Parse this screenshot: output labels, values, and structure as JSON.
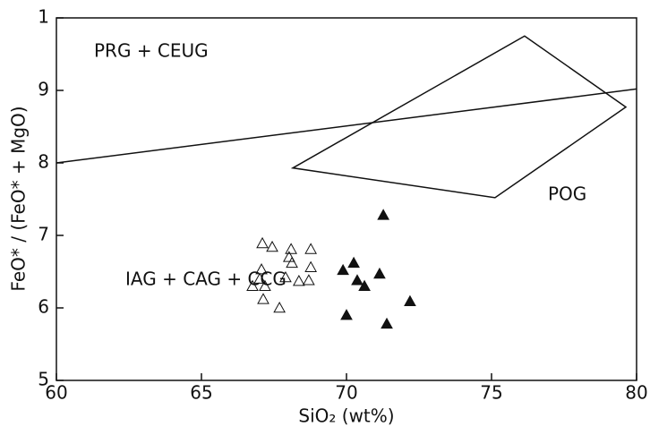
{
  "chart_data": {
    "type": "scatter",
    "xlabel": "SiO₂ (wt%)",
    "ylabel": "FeO* / (FeO* + MgO)",
    "xlim": [
      60,
      80
    ],
    "xticks": [
      60,
      65,
      70,
      75,
      80
    ],
    "ylim": [
      5,
      10
    ],
    "yticks": [
      5,
      6,
      7,
      8,
      9,
      {
        "value": 10,
        "label": "1"
      }
    ],
    "annotations": [
      "PRG + CEUG",
      "POG",
      "IAG + CAG + CCG"
    ],
    "series": [
      {
        "marker": "open-triangle",
        "color": "#111111",
        "x": [
          67.1,
          67.44,
          67.07,
          68.09,
          68.77,
          68.02,
          68.12,
          67.01,
          67.9,
          68.77,
          66.76,
          67.19,
          68.36,
          68.7,
          67.13,
          67.69
        ],
        "values": [
          6.89,
          6.84,
          6.53,
          6.81,
          6.81,
          6.7,
          6.62,
          6.4,
          6.42,
          6.56,
          6.3,
          6.3,
          6.37,
          6.38,
          6.12,
          6.0
        ]
      },
      {
        "marker": "filled-triangle",
        "color": "#111111",
        "x": [
          71.27,
          69.88,
          70.25,
          71.14,
          70.37,
          70.62,
          70.0,
          72.19,
          71.39
        ],
        "values": [
          7.28,
          6.52,
          6.62,
          6.47,
          6.38,
          6.3,
          5.9,
          6.09,
          5.78
        ]
      }
    ],
    "lines": [
      {
        "x": [
          60,
          80
        ],
        "values": [
          8.0,
          9.02
        ]
      }
    ],
    "polygons": [
      {
        "x": [
          68.15,
          76.14,
          79.63,
          75.12
        ],
        "values": [
          7.93,
          9.75,
          8.77,
          7.52
        ]
      }
    ]
  }
}
